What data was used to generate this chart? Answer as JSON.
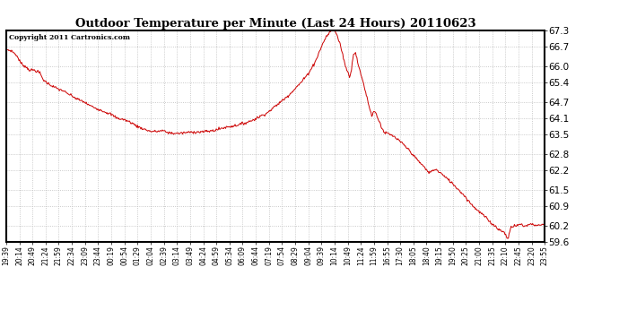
{
  "title": "Outdoor Temperature per Minute (Last 24 Hours) 20110623",
  "copyright": "Copyright 2011 Cartronics.com",
  "line_color": "#cc0000",
  "background_color": "#ffffff",
  "grid_color": "#bbbbbb",
  "ylim": [
    59.6,
    67.3
  ],
  "yticks": [
    59.6,
    60.2,
    60.9,
    61.5,
    62.2,
    62.8,
    63.5,
    64.1,
    64.7,
    65.4,
    66.0,
    66.7,
    67.3
  ],
  "x_labels": [
    "19:39",
    "20:14",
    "20:49",
    "21:24",
    "21:59",
    "22:34",
    "23:09",
    "23:44",
    "00:19",
    "00:54",
    "01:29",
    "02:04",
    "02:39",
    "03:14",
    "03:49",
    "04:24",
    "04:59",
    "05:34",
    "06:09",
    "06:44",
    "07:19",
    "07:54",
    "08:29",
    "09:04",
    "09:39",
    "10:14",
    "10:49",
    "11:24",
    "11:59",
    "16:55",
    "17:30",
    "18:05",
    "18:40",
    "19:15",
    "19:50",
    "20:25",
    "21:00",
    "21:35",
    "22:10",
    "22:45",
    "23:20",
    "23:55"
  ],
  "keypoints": [
    [
      0,
      66.6
    ],
    [
      8,
      66.55
    ],
    [
      15,
      66.4
    ],
    [
      22,
      66.1
    ],
    [
      30,
      65.95
    ],
    [
      35,
      65.85
    ],
    [
      42,
      65.85
    ],
    [
      50,
      65.75
    ],
    [
      55,
      65.5
    ],
    [
      60,
      65.4
    ],
    [
      70,
      65.25
    ],
    [
      78,
      65.15
    ],
    [
      85,
      65.1
    ],
    [
      90,
      65.0
    ],
    [
      95,
      64.95
    ],
    [
      105,
      64.8
    ],
    [
      115,
      64.7
    ],
    [
      125,
      64.55
    ],
    [
      140,
      64.4
    ],
    [
      155,
      64.25
    ],
    [
      165,
      64.1
    ],
    [
      175,
      64.05
    ],
    [
      185,
      63.95
    ],
    [
      195,
      63.8
    ],
    [
      205,
      63.7
    ],
    [
      215,
      63.62
    ],
    [
      225,
      63.62
    ],
    [
      232,
      63.65
    ],
    [
      240,
      63.58
    ],
    [
      248,
      63.55
    ],
    [
      258,
      63.55
    ],
    [
      268,
      63.58
    ],
    [
      278,
      63.6
    ],
    [
      288,
      63.6
    ],
    [
      298,
      63.62
    ],
    [
      308,
      63.65
    ],
    [
      318,
      63.72
    ],
    [
      328,
      63.78
    ],
    [
      338,
      63.82
    ],
    [
      348,
      63.88
    ],
    [
      358,
      63.95
    ],
    [
      368,
      64.05
    ],
    [
      378,
      64.18
    ],
    [
      388,
      64.3
    ],
    [
      398,
      64.5
    ],
    [
      408,
      64.7
    ],
    [
      418,
      64.9
    ],
    [
      428,
      65.15
    ],
    [
      438,
      65.4
    ],
    [
      448,
      65.7
    ],
    [
      458,
      66.1
    ],
    [
      465,
      66.5
    ],
    [
      470,
      66.8
    ],
    [
      475,
      67.05
    ],
    [
      480,
      67.2
    ],
    [
      483,
      67.28
    ],
    [
      486,
      67.3
    ],
    [
      488,
      67.28
    ],
    [
      490,
      67.2
    ],
    [
      493,
      67.0
    ],
    [
      496,
      66.8
    ],
    [
      498,
      66.6
    ],
    [
      501,
      66.3
    ],
    [
      504,
      66.0
    ],
    [
      507,
      65.8
    ],
    [
      510,
      65.6
    ],
    [
      513,
      65.9
    ],
    [
      516,
      66.45
    ],
    [
      519,
      66.5
    ],
    [
      522,
      66.15
    ],
    [
      525,
      65.85
    ],
    [
      528,
      65.6
    ],
    [
      531,
      65.35
    ],
    [
      534,
      65.05
    ],
    [
      537,
      64.75
    ],
    [
      540,
      64.45
    ],
    [
      543,
      64.2
    ],
    [
      546,
      64.35
    ],
    [
      549,
      64.3
    ],
    [
      552,
      64.1
    ],
    [
      555,
      63.95
    ],
    [
      558,
      63.75
    ],
    [
      561,
      63.6
    ],
    [
      564,
      63.55
    ],
    [
      567,
      63.55
    ],
    [
      570,
      63.5
    ],
    [
      575,
      63.45
    ],
    [
      580,
      63.35
    ],
    [
      590,
      63.15
    ],
    [
      600,
      62.9
    ],
    [
      610,
      62.6
    ],
    [
      620,
      62.35
    ],
    [
      625,
      62.2
    ],
    [
      628,
      62.12
    ],
    [
      631,
      62.15
    ],
    [
      634,
      62.2
    ],
    [
      637,
      62.25
    ],
    [
      640,
      62.2
    ],
    [
      643,
      62.15
    ],
    [
      646,
      62.1
    ],
    [
      650,
      62.0
    ],
    [
      660,
      61.8
    ],
    [
      670,
      61.55
    ],
    [
      680,
      61.3
    ],
    [
      690,
      61.0
    ],
    [
      700,
      60.75
    ],
    [
      710,
      60.55
    ],
    [
      720,
      60.3
    ],
    [
      730,
      60.1
    ],
    [
      735,
      60.0
    ],
    [
      740,
      59.95
    ],
    [
      743,
      59.82
    ],
    [
      746,
      59.72
    ],
    [
      749,
      60.1
    ],
    [
      752,
      60.15
    ],
    [
      755,
      60.2
    ],
    [
      758,
      60.18
    ],
    [
      761,
      60.22
    ],
    [
      764,
      60.25
    ],
    [
      767,
      60.2
    ],
    [
      770,
      60.18
    ],
    [
      780,
      60.25
    ],
    [
      790,
      60.2
    ],
    [
      800,
      60.25
    ]
  ]
}
